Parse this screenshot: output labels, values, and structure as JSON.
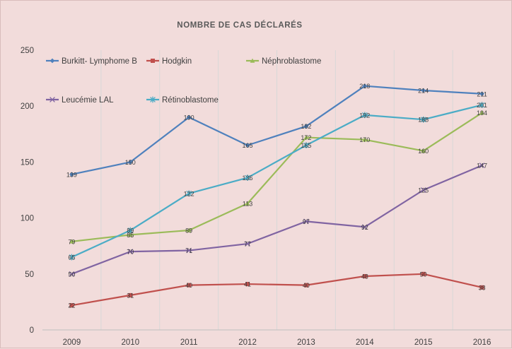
{
  "chart_data": {
    "type": "line",
    "title": "NOMBRE DE CAS DÉCLARÉS",
    "xlabel": "",
    "ylabel": "",
    "categories": [
      "2009",
      "2010",
      "2011",
      "2012",
      "2013",
      "2014",
      "2015",
      "2016"
    ],
    "ylim": [
      0,
      250
    ],
    "yticks": [
      "0",
      "50",
      "100",
      "150",
      "200",
      "250"
    ],
    "grid": "vertical category separators",
    "legend_position": "top-left, inside plot",
    "series": [
      {
        "name": "Burkitt- Lymphome B",
        "color": "#4f81bd",
        "marker": "diamond",
        "values": [
          139,
          150,
          190,
          165,
          182,
          218,
          214,
          211
        ]
      },
      {
        "name": "Hodgkin",
        "color": "#c0504d",
        "marker": "square",
        "values": [
          22,
          31,
          40,
          41,
          40,
          48,
          50,
          38
        ]
      },
      {
        "name": "Néphroblastome",
        "color": "#9bbb59",
        "marker": "triangle",
        "values": [
          79,
          85,
          89,
          113,
          172,
          170,
          160,
          194
        ]
      },
      {
        "name": "Leucémie LAL",
        "color": "#8064a2",
        "marker": "x",
        "values": [
          50,
          70,
          71,
          77,
          97,
          92,
          125,
          147
        ]
      },
      {
        "name": "Rétinoblastome",
        "color": "#4bacc6",
        "marker": "star",
        "values": [
          65,
          89,
          122,
          136,
          165,
          192,
          188,
          201
        ]
      }
    ]
  }
}
